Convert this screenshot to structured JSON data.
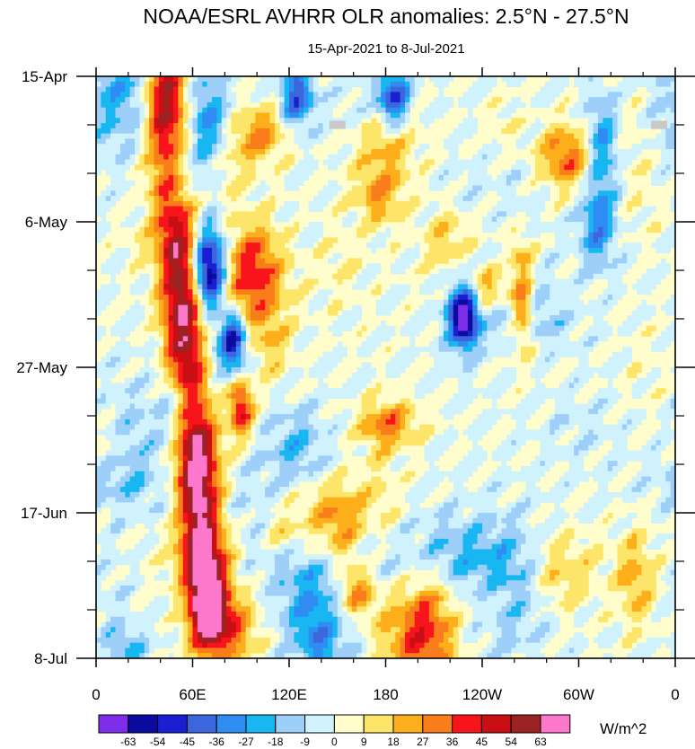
{
  "chart_data": {
    "type": "heatmap",
    "title": "NOAA/ESRL AVHRR OLR anomalies: 2.5°N - 27.5°N",
    "subtitle": "15-Apr-2021 to 8-Jul-2021",
    "xlabel": "",
    "ylabel": "",
    "x_range_lon_east": [
      0,
      360
    ],
    "x_tick_lon_east": [
      0,
      60,
      120,
      180,
      240,
      300,
      360
    ],
    "x_tick_labels": [
      "0",
      "60E",
      "120E",
      "180",
      "120W",
      "60W",
      "0"
    ],
    "y_range_days": [
      0,
      84
    ],
    "y_tick_days": [
      0,
      21,
      42,
      63,
      84
    ],
    "y_tick_labels": [
      "15-Apr",
      "6-May",
      "27-May",
      "17-Jun",
      "8-Jul"
    ],
    "y_direction": "time increases downward",
    "colorbar": {
      "units": "W/m^2",
      "levels": [
        -63,
        -54,
        -45,
        -36,
        -27,
        -18,
        -9,
        0,
        9,
        18,
        27,
        36,
        45,
        54,
        63
      ],
      "level_labels": [
        "-63",
        "-54",
        "-45",
        "-36",
        "-27",
        "-18",
        "-9",
        "0",
        "9",
        "18",
        "27",
        "36",
        "45",
        "54",
        "63"
      ],
      "colors": [
        "#7e2eea",
        "#0b0ba0",
        "#1a20d2",
        "#3c66dc",
        "#2e8cf2",
        "#19b7f2",
        "#9ecff8",
        "#d0f2fd",
        "#fffdcc",
        "#fde56a",
        "#fdaf1b",
        "#f97d1b",
        "#f7141b",
        "#c90f14",
        "#9b2323",
        "#fb78cc"
      ]
    },
    "features": [
      {
        "name": "western-indian-ocean-positive-band",
        "description": "positive anomalies along 40E-80E drifting east with time",
        "lon": [
          40,
          80
        ],
        "value": 36
      },
      {
        "name": "central-indian-negative",
        "value": -63,
        "lon": 70,
        "day": 28
      },
      {
        "name": "missing-data-patch",
        "lon": 150,
        "day": 7
      },
      {
        "name": "missing-data-patch",
        "lon": 350,
        "day": 7
      }
    ]
  }
}
